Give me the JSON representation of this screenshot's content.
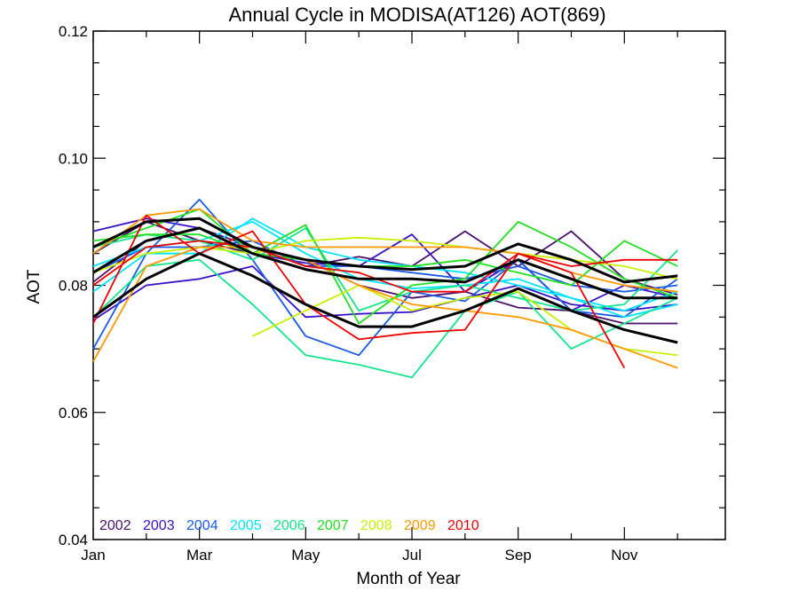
{
  "chart_data": {
    "type": "line",
    "title": "Annual Cycle in MODISA(AT126) AOT(869)",
    "xlabel": "Month of Year",
    "ylabel": "AOT",
    "xlim": [
      1,
      12.9
    ],
    "ylim": [
      0.04,
      0.12
    ],
    "x_tick_labels": [
      "Jan",
      "Mar",
      "May",
      "Jul",
      "Sep",
      "Nov"
    ],
    "x_tick_values": [
      1,
      3,
      5,
      7,
      9,
      11
    ],
    "y_tick_labels": [
      "0.04",
      "0.06",
      "0.08",
      "0.10",
      "0.12"
    ],
    "y_tick_values": [
      0.04,
      0.06,
      0.08,
      0.1,
      0.12
    ],
    "grid": false,
    "legend_position": "bottom-left",
    "x": [
      1,
      2,
      3,
      4,
      5,
      6,
      7,
      8,
      9,
      10,
      11,
      12
    ],
    "series": [
      {
        "name": "2002",
        "color": "#4b0f6e",
        "lines": [
          [
            0.0805,
            0.087,
            0.089,
            0.086,
            0.083,
            0.0845,
            0.083,
            0.0885,
            0.083,
            0.0885,
            0.081,
            0.0785
          ],
          [
            0.085,
            0.09,
            0.087,
            0.085,
            0.084,
            0.08,
            0.078,
            0.079,
            0.0765,
            0.076,
            0.074,
            0.074
          ]
        ]
      },
      {
        "name": "2003",
        "color": "#3a10c8",
        "lines": [
          [
            0.0885,
            0.0905,
            0.089,
            0.085,
            0.0835,
            0.083,
            0.088,
            0.079,
            0.084,
            0.076,
            0.08,
            0.078
          ],
          [
            0.0745,
            0.08,
            0.081,
            0.083,
            0.075,
            0.0755,
            0.0758,
            0.078,
            0.08,
            0.077,
            0.076,
            0.077
          ]
        ]
      },
      {
        "name": "2004",
        "color": "#1a5ae6",
        "lines": [
          [
            0.07,
            0.085,
            0.0935,
            0.084,
            0.072,
            0.069,
            0.079,
            0.0775,
            0.084,
            0.076,
            0.075,
            0.081
          ],
          [
            0.082,
            0.086,
            0.086,
            0.087,
            0.083,
            0.083,
            0.082,
            0.081,
            0.083,
            0.08,
            0.079,
            0.08
          ]
        ]
      },
      {
        "name": "2005",
        "color": "#00e5ff",
        "lines": [
          [
            0.079,
            0.085,
            0.085,
            0.0905,
            0.086,
            0.084,
            0.083,
            0.082,
            0.08,
            0.078,
            0.076,
            0.079
          ],
          [
            0.083,
            0.086,
            0.087,
            0.09,
            0.085,
            0.081,
            0.0795,
            0.08,
            0.081,
            0.078,
            0.075,
            0.077
          ]
        ]
      },
      {
        "name": "2006",
        "color": "#14e68c",
        "lines": [
          [
            0.075,
            0.083,
            0.084,
            0.077,
            0.069,
            0.0675,
            0.0655,
            0.076,
            0.079,
            0.07,
            0.074,
            0.078
          ],
          [
            0.086,
            0.088,
            0.087,
            0.084,
            0.089,
            0.076,
            0.079,
            0.08,
            0.078,
            0.076,
            0.077,
            0.0855
          ]
        ]
      },
      {
        "name": "2007",
        "color": "#20e020",
        "lines": [
          [
            0.086,
            0.089,
            0.092,
            0.085,
            0.0895,
            0.074,
            0.08,
            0.081,
            0.09,
            0.086,
            0.081,
            0.078
          ],
          [
            0.087,
            0.088,
            0.088,
            0.085,
            0.084,
            0.083,
            0.083,
            0.084,
            0.082,
            0.08,
            0.087,
            0.083
          ]
        ]
      },
      {
        "name": "2008",
        "color": "#c8f000",
        "lines": [
          [
            null,
            null,
            null,
            0.072,
            0.076,
            0.08,
            0.076,
            0.078,
            0.079,
            0.073,
            0.07,
            0.069
          ],
          [
            0.082,
            0.085,
            0.086,
            0.085,
            0.087,
            0.0875,
            0.087,
            0.086,
            0.085,
            0.084,
            0.083,
            0.081
          ]
        ]
      },
      {
        "name": "2009",
        "color": "#ff9900",
        "lines": [
          [
            0.068,
            0.083,
            0.086,
            0.086,
            0.084,
            0.08,
            0.077,
            0.076,
            0.075,
            0.073,
            0.07,
            0.067
          ],
          [
            0.085,
            0.091,
            0.092,
            0.087,
            0.086,
            0.086,
            0.086,
            0.086,
            0.085,
            0.082,
            0.08,
            0.079
          ]
        ]
      },
      {
        "name": "2010",
        "color": "#f00000",
        "lines": [
          [
            0.074,
            0.091,
            0.085,
            0.0885,
            0.077,
            0.0715,
            0.0725,
            0.073,
            0.085,
            0.082,
            0.067,
            null
          ],
          [
            0.08,
            0.086,
            0.087,
            0.086,
            0.083,
            0.082,
            0.079,
            0.079,
            0.085,
            0.083,
            0.084,
            0.084
          ]
        ]
      }
    ],
    "summary_lines": {
      "color": "#000000",
      "lines": [
        [
          0.086,
          0.09,
          0.0905,
          0.086,
          0.084,
          0.083,
          0.0825,
          0.083,
          0.0865,
          0.084,
          0.0805,
          0.0815
        ],
        [
          0.082,
          0.087,
          0.089,
          0.085,
          0.0825,
          0.081,
          0.081,
          0.0805,
          0.084,
          0.081,
          0.078,
          0.078
        ],
        [
          0.075,
          0.081,
          0.085,
          0.0815,
          0.077,
          0.0735,
          0.0735,
          0.076,
          0.0795,
          0.076,
          0.073,
          0.071
        ]
      ]
    }
  }
}
